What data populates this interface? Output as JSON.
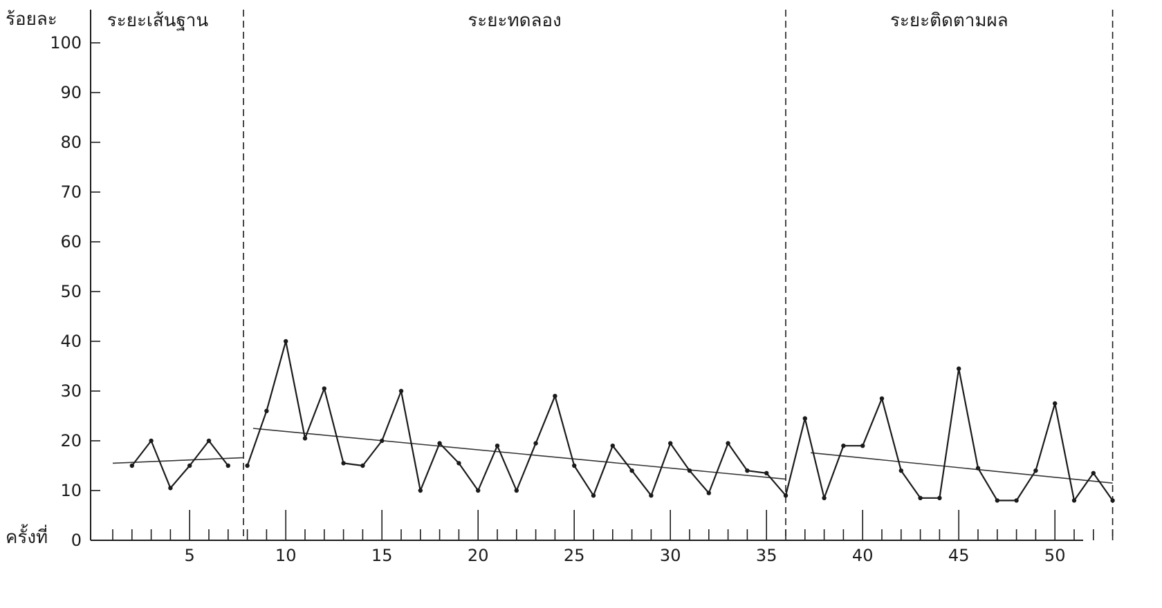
{
  "chart_data": {
    "type": "line",
    "ylabel": "ร้อยละ",
    "xlabel": "ครั้งที่",
    "ylim": [
      0,
      100
    ],
    "xlim": [
      1,
      53
    ],
    "y_ticks": [
      0,
      10,
      20,
      30,
      40,
      50,
      60,
      70,
      80,
      90,
      100
    ],
    "x_tick_labels": [
      5,
      10,
      15,
      20,
      25,
      30,
      35,
      40,
      45,
      50
    ],
    "grid": false,
    "phases": [
      {
        "label": "ระยะเส้นฐาน",
        "start": 1,
        "end": 7.8
      },
      {
        "label": "ระยะทดลอง",
        "start": 7.8,
        "end": 36
      },
      {
        "label": "ระยะติดตามผล",
        "start": 36,
        "end": 53
      }
    ],
    "phase_boundaries": [
      7.8,
      36,
      53
    ],
    "series": [
      {
        "x": [
          2,
          3,
          4,
          5,
          6,
          7,
          8,
          9,
          10,
          11,
          12,
          13,
          14,
          15,
          16,
          17,
          18,
          19,
          20,
          21,
          22,
          23,
          24,
          25,
          26,
          27,
          28,
          29,
          30,
          31,
          32,
          33,
          34,
          35,
          36,
          37,
          38,
          39,
          40,
          41,
          42,
          43,
          44,
          45,
          46,
          47,
          48,
          49,
          50,
          51,
          52,
          53
        ],
        "values": [
          15,
          20,
          10.5,
          15,
          20,
          15,
          15,
          26,
          40,
          20.5,
          30.5,
          15.5,
          15,
          20,
          30,
          10,
          19.5,
          15.5,
          10,
          19,
          10,
          19.5,
          29,
          15,
          9,
          19,
          14,
          9,
          19.5,
          14,
          9.5,
          19.5,
          14,
          13.5,
          9,
          24.5,
          8.5,
          19,
          19,
          28.5,
          14,
          8.5,
          8.5,
          34.5,
          14.5,
          8,
          8,
          14,
          27.5,
          8,
          13.5,
          8
        ]
      }
    ],
    "trend_lines": [
      {
        "x": [
          1,
          7.8
        ],
        "y": [
          15.5,
          16.6
        ]
      },
      {
        "x": [
          8.3,
          36
        ],
        "y": [
          22.5,
          12.3
        ]
      },
      {
        "x": [
          37.3,
          53
        ],
        "y": [
          17.6,
          11.5
        ]
      }
    ]
  }
}
